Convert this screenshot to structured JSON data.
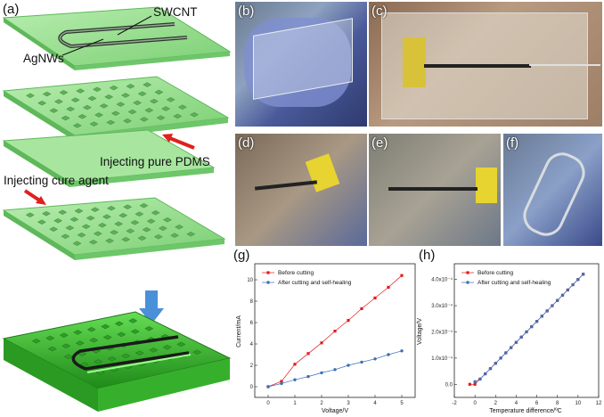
{
  "panel_labels": {
    "a": "(a)",
    "b": "(b)",
    "c": "(c)",
    "d": "(d)",
    "e": "(e)",
    "f": "(f)",
    "g": "(g)",
    "h": "(h)"
  },
  "schematic": {
    "label_swcnt": "SWCNT",
    "label_agnws": "AgNWs",
    "label_pdms": "Injecting pure PDMS",
    "label_cure": "Injecting cure agent"
  },
  "colors": {
    "layer_green": "#8fd88a",
    "device_green": "#3fbf2f",
    "arrow_red": "#e0201c",
    "arrow_blue": "#4a90d9",
    "before_cutting": "#e41a1c",
    "after_cutting": "#3b6fb6"
  },
  "chart_data": [
    {
      "type": "line",
      "title": "",
      "xlabel": "Voltage/V",
      "ylabel": "Current/mA",
      "xlim": [
        -0.5,
        5.5
      ],
      "ylim": [
        -1,
        11.5
      ],
      "xticks": [
        "0",
        "1",
        "2",
        "3",
        "4",
        "5"
      ],
      "yticks": [
        "0",
        "2",
        "4",
        "6",
        "8",
        "10"
      ],
      "legend": "top-left",
      "series": [
        {
          "name": "Before cutting",
          "marker": "square",
          "color": "#e41a1c",
          "x": [
            0,
            0.5,
            1,
            1.5,
            2,
            2.5,
            3,
            3.5,
            4,
            4.5,
            5
          ],
          "y": [
            0,
            0.5,
            2.1,
            3.1,
            4.1,
            5.2,
            6.2,
            7.3,
            8.3,
            9.3,
            10.4
          ]
        },
        {
          "name": "After cutting and self-healing",
          "marker": "circle",
          "color": "#3b6fb6",
          "x": [
            0,
            0.5,
            1,
            1.5,
            2,
            2.5,
            3,
            3.5,
            4,
            4.5,
            5
          ],
          "y": [
            0,
            0.3,
            0.65,
            0.95,
            1.3,
            1.6,
            2.0,
            2.3,
            2.6,
            3.0,
            3.35
          ]
        }
      ]
    },
    {
      "type": "scatter",
      "title": "",
      "xlabel": "Temperature difference/ºC",
      "ylabel": "Voltage/V",
      "xlim": [
        -2,
        12
      ],
      "ylim": [
        -5e-05,
        0.00046
      ],
      "xticks": [
        "-2",
        "0",
        "2",
        "4",
        "6",
        "8",
        "10",
        "12"
      ],
      "yticks": [
        "0.0",
        "1.0x10⁻⁴",
        "2.0x10⁻⁴",
        "3.0x10⁻⁴",
        "4.0x10⁻⁴"
      ],
      "legend": "top-left",
      "series": [
        {
          "name": "Before cutting",
          "marker": "square",
          "color": "#e41a1c",
          "x": [
            -0.5,
            0,
            0.5,
            1,
            1.5,
            2,
            2.5,
            3,
            3.5,
            4,
            4.5,
            5,
            5.5,
            6,
            6.5,
            7,
            7.5,
            8,
            8.5,
            9,
            9.5,
            10,
            10.5
          ],
          "y": [
            0,
            0,
            2e-05,
            4e-05,
            6e-05,
            8e-05,
            0.0001,
            0.00012,
            0.00014,
            0.00016,
            0.00018,
            0.0002,
            0.00022,
            0.00024,
            0.00026,
            0.00028,
            0.0003,
            0.00032,
            0.00034,
            0.00036,
            0.00038,
            0.0004,
            0.00042
          ]
        },
        {
          "name": "After cutting and self-healing",
          "marker": "circle",
          "color": "#3b6fb6",
          "x": [
            0,
            0.5,
            1,
            1.5,
            2,
            2.5,
            3,
            3.5,
            4,
            4.5,
            5,
            5.5,
            6,
            6.5,
            7,
            7.5,
            8,
            8.5,
            9,
            9.5,
            10,
            10.5
          ],
          "y": [
            1e-05,
            2e-05,
            4e-05,
            6e-05,
            8e-05,
            0.0001,
            0.00012,
            0.00014,
            0.00016,
            0.00018,
            0.0002,
            0.00022,
            0.00024,
            0.00026,
            0.00028,
            0.0003,
            0.00032,
            0.00034,
            0.00036,
            0.00038,
            0.0004,
            0.00042
          ]
        }
      ]
    }
  ]
}
